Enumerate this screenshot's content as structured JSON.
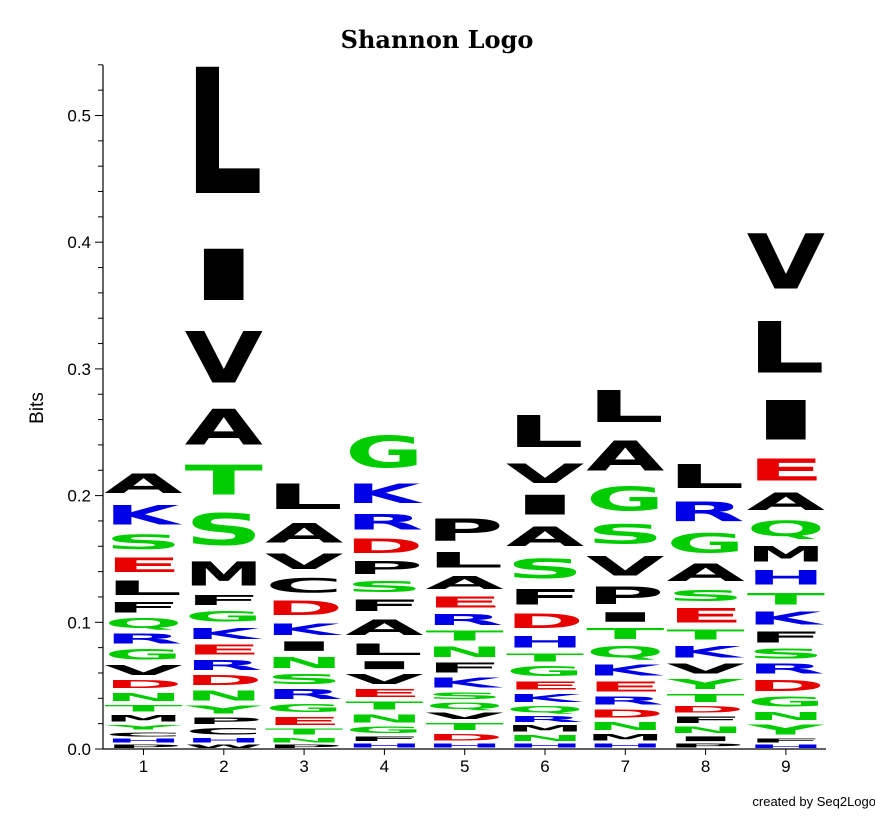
{
  "chart_data": {
    "type": "sequence-logo",
    "title": "Shannon Logo",
    "ylabel": "Bits",
    "xlabel": "",
    "ylim": [
      0,
      0.54
    ],
    "yticks": [
      "0.0",
      "0.1",
      "0.2",
      "0.3",
      "0.4",
      "0.5"
    ],
    "ytick_values": [
      0.0,
      0.1,
      0.2,
      0.3,
      0.4,
      0.5
    ],
    "positions": [
      "1",
      "2",
      "3",
      "4",
      "5",
      "6",
      "7",
      "8",
      "9"
    ],
    "colors": {
      "A": "#000000",
      "V": "#000000",
      "L": "#000000",
      "I": "#000000",
      "P": "#000000",
      "F": "#000000",
      "M": "#000000",
      "W": "#000000",
      "C": "#000000",
      "G": "#00cc00",
      "S": "#00cc00",
      "T": "#00cc00",
      "Y": "#00cc00",
      "N": "#00cc00",
      "Q": "#00cc00",
      "K": "#0000e6",
      "R": "#0000e6",
      "H": "#0000e6",
      "D": "#e60000",
      "E": "#e60000"
    },
    "stacks": [
      [
        [
          "P",
          0.004
        ],
        [
          "H",
          0.005
        ],
        [
          "C",
          0.005
        ],
        [
          "Y",
          0.006
        ],
        [
          "M",
          0.008
        ],
        [
          "T",
          0.008
        ],
        [
          "N",
          0.01
        ],
        [
          "D",
          0.01
        ],
        [
          "V",
          0.012
        ],
        [
          "G",
          0.013
        ],
        [
          "R",
          0.012
        ],
        [
          "Q",
          0.012
        ],
        [
          "F",
          0.013
        ],
        [
          "L",
          0.018
        ],
        [
          "E",
          0.018
        ],
        [
          "S",
          0.018
        ],
        [
          "K",
          0.025
        ],
        [
          "A",
          0.025
        ]
      ],
      [
        [
          "W",
          0.004
        ],
        [
          "H",
          0.006
        ],
        [
          "C",
          0.008
        ],
        [
          "P",
          0.008
        ],
        [
          "Y",
          0.01
        ],
        [
          "N",
          0.012
        ],
        [
          "D",
          0.012
        ],
        [
          "R",
          0.012
        ],
        [
          "E",
          0.012
        ],
        [
          "K",
          0.014
        ],
        [
          "G",
          0.013
        ],
        [
          "F",
          0.012
        ],
        [
          "M",
          0.03
        ],
        [
          "S",
          0.04
        ],
        [
          "T",
          0.038
        ],
        [
          "A",
          0.045
        ],
        [
          "V",
          0.065
        ],
        [
          "I",
          0.065
        ],
        [
          "L",
          0.16
        ]
      ],
      [
        [
          "P",
          0.004
        ],
        [
          "N",
          0.006
        ],
        [
          "T",
          0.007
        ],
        [
          "E",
          0.01
        ],
        [
          "G",
          0.01
        ],
        [
          "R",
          0.012
        ],
        [
          "S",
          0.012
        ],
        [
          "N",
          0.014
        ],
        [
          "I",
          0.012
        ],
        [
          "K",
          0.015
        ],
        [
          "D",
          0.018
        ],
        [
          "C",
          0.018
        ],
        [
          "V",
          0.02
        ],
        [
          "A",
          0.025
        ],
        [
          "L",
          0.032
        ]
      ],
      [
        [
          "H",
          0.005
        ],
        [
          "F",
          0.006
        ],
        [
          "G",
          0.008
        ],
        [
          "N",
          0.01
        ],
        [
          "T",
          0.01
        ],
        [
          "E",
          0.01
        ],
        [
          "V",
          0.012
        ],
        [
          "I",
          0.01
        ],
        [
          "L",
          0.015
        ],
        [
          "A",
          0.02
        ],
        [
          "F",
          0.015
        ],
        [
          "S",
          0.014
        ],
        [
          "P",
          0.016
        ],
        [
          "D",
          0.018
        ],
        [
          "R",
          0.02
        ],
        [
          "K",
          0.025
        ],
        [
          "G",
          0.04
        ]
      ],
      [
        [
          "H",
          0.005
        ],
        [
          "D",
          0.008
        ],
        [
          "T",
          0.009
        ],
        [
          "V",
          0.008
        ],
        [
          "Q",
          0.008
        ],
        [
          "S",
          0.008
        ],
        [
          "K",
          0.012
        ],
        [
          "F",
          0.012
        ],
        [
          "N",
          0.013
        ],
        [
          "T",
          0.012
        ],
        [
          "R",
          0.014
        ],
        [
          "E",
          0.014
        ],
        [
          "A",
          0.016
        ],
        [
          "L",
          0.02
        ],
        [
          "P",
          0.028
        ]
      ],
      [
        [
          "H",
          0.005
        ],
        [
          "N",
          0.007
        ],
        [
          "M",
          0.008
        ],
        [
          "R",
          0.007
        ],
        [
          "Q",
          0.008
        ],
        [
          "K",
          0.01
        ],
        [
          "E",
          0.01
        ],
        [
          "G",
          0.012
        ],
        [
          "T",
          0.01
        ],
        [
          "H",
          0.015
        ],
        [
          "D",
          0.018
        ],
        [
          "F",
          0.02
        ],
        [
          "S",
          0.025
        ],
        [
          "A",
          0.025
        ],
        [
          "I",
          0.025
        ],
        [
          "V",
          0.025
        ],
        [
          "L",
          0.04
        ]
      ],
      [
        [
          "H",
          0.005
        ],
        [
          "M",
          0.008
        ],
        [
          "N",
          0.01
        ],
        [
          "D",
          0.01
        ],
        [
          "R",
          0.01
        ],
        [
          "E",
          0.012
        ],
        [
          "K",
          0.014
        ],
        [
          "Q",
          0.015
        ],
        [
          "T",
          0.014
        ],
        [
          "I",
          0.012
        ],
        [
          "P",
          0.022
        ],
        [
          "V",
          0.025
        ],
        [
          "S",
          0.025
        ],
        [
          "G",
          0.03
        ],
        [
          "A",
          0.038
        ],
        [
          "L",
          0.04
        ]
      ],
      [
        [
          "P",
          0.005
        ],
        [
          "I",
          0.006
        ],
        [
          "N",
          0.008
        ],
        [
          "F",
          0.008
        ],
        [
          "D",
          0.008
        ],
        [
          "T",
          0.01
        ],
        [
          "Y",
          0.012
        ],
        [
          "V",
          0.012
        ],
        [
          "K",
          0.015
        ],
        [
          "T",
          0.012
        ],
        [
          "E",
          0.018
        ],
        [
          "S",
          0.014
        ],
        [
          "A",
          0.022
        ],
        [
          "G",
          0.025
        ],
        [
          "R",
          0.025
        ],
        [
          "L",
          0.03
        ]
      ],
      [
        [
          "H",
          0.004
        ],
        [
          "F",
          0.005
        ],
        [
          "Y",
          0.012
        ],
        [
          "N",
          0.01
        ],
        [
          "G",
          0.012
        ],
        [
          "D",
          0.014
        ],
        [
          "R",
          0.012
        ],
        [
          "S",
          0.012
        ],
        [
          "F",
          0.014
        ],
        [
          "K",
          0.016
        ],
        [
          "T",
          0.015
        ],
        [
          "H",
          0.018
        ],
        [
          "M",
          0.02
        ],
        [
          "Q",
          0.02
        ],
        [
          "A",
          0.022
        ],
        [
          "E",
          0.028
        ],
        [
          "I",
          0.05
        ],
        [
          "L",
          0.065
        ],
        [
          "V",
          0.07
        ]
      ]
    ]
  },
  "footer": {
    "credit": "created by Seq2Logo"
  }
}
